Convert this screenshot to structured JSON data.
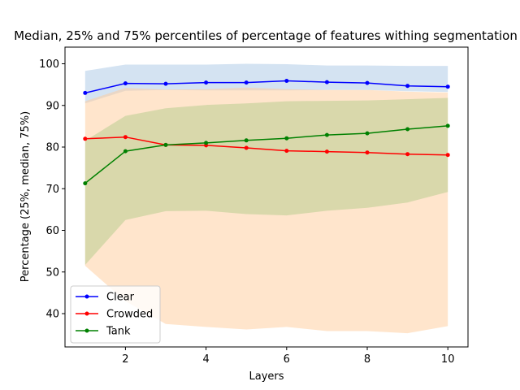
{
  "chart_data": {
    "type": "line",
    "title": "Median, 25% and 75% percentiles of percentage of features withing segmentation",
    "xlabel": "Layers",
    "ylabel": "Percentage (25%, median, 75%)",
    "x": [
      1,
      2,
      3,
      4,
      5,
      6,
      7,
      8,
      9,
      10
    ],
    "xlim": [
      0.5,
      10.5
    ],
    "ylim": [
      32,
      104
    ],
    "xticks": [
      2,
      4,
      6,
      8,
      10
    ],
    "yticks": [
      40,
      50,
      60,
      70,
      80,
      90,
      100
    ],
    "grid": false,
    "legend_position": "lower-left",
    "series": [
      {
        "name": "Clear",
        "color": "#0000ff",
        "band_color": "#aac8e6",
        "median": [
          93.0,
          95.3,
          95.2,
          95.5,
          95.5,
          95.9,
          95.6,
          95.4,
          94.7,
          94.5
        ],
        "p25": [
          90.5,
          93.5,
          93.7,
          93.6,
          93.6,
          93.6,
          93.7,
          93.7,
          93.4,
          93.2
        ],
        "p75": [
          98.3,
          99.8,
          99.8,
          99.8,
          100.0,
          99.9,
          99.6,
          99.6,
          99.5,
          99.5
        ]
      },
      {
        "name": "Crowded",
        "color": "#ff0000",
        "band_color": "#ffcc99",
        "median": [
          82.0,
          82.4,
          80.5,
          80.4,
          79.8,
          79.1,
          78.9,
          78.7,
          78.3,
          78.1
        ],
        "p25": [
          51.5,
          43.0,
          37.5,
          36.8,
          36.2,
          36.8,
          35.8,
          35.8,
          35.3,
          37.0
        ],
        "p75": [
          91.0,
          94.2,
          93.8,
          93.9,
          94.3,
          93.9,
          93.7,
          93.7,
          93.3,
          93.1
        ]
      },
      {
        "name": "Tank",
        "color": "#008000",
        "band_color": "#b3cc8a",
        "median": [
          71.3,
          79.0,
          80.5,
          81.0,
          81.6,
          82.1,
          82.9,
          83.3,
          84.3,
          85.1
        ],
        "p25": [
          51.7,
          62.5,
          64.6,
          64.7,
          63.9,
          63.6,
          64.7,
          65.4,
          66.7,
          69.2
        ],
        "p75": [
          81.5,
          87.5,
          89.3,
          90.1,
          90.5,
          91.0,
          91.1,
          91.2,
          91.5,
          91.8
        ]
      }
    ]
  }
}
